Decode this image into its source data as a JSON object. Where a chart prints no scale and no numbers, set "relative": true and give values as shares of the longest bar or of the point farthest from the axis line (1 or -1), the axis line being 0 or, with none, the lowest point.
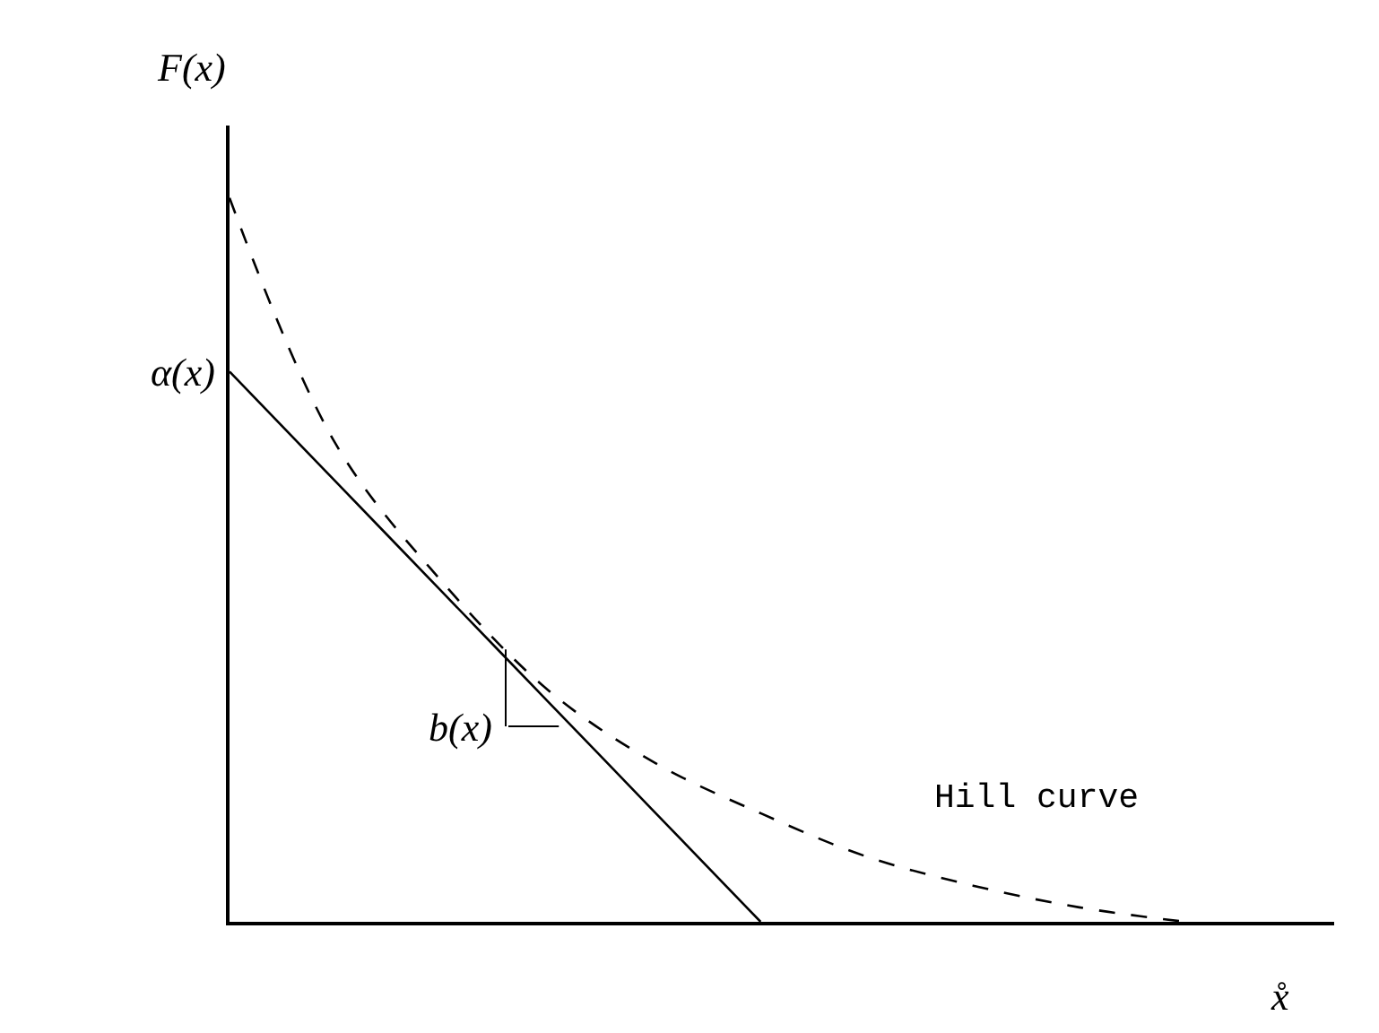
{
  "chart_data": {
    "type": "line",
    "relative": true,
    "ylabel": "F(x)",
    "xlabel": "x̊",
    "categories": [
      null,
      null,
      null,
      null,
      null,
      null,
      null,
      null,
      null,
      null
    ],
    "series": [
      {
        "color": "#000000",
        "line_style": "dashed",
        "values": [
          1.0,
          0.66,
          0.47,
          0.32,
          0.22,
          0.15,
          0.09,
          0.05,
          0.02,
          0.0
        ]
      },
      {
        "color": "#000000",
        "line_style": "solid",
        "values": [
          0.76,
          0.608,
          0.456,
          0.304,
          0.152,
          0.0,
          null,
          null,
          null,
          null
        ]
      }
    ],
    "annotations": [
      "α(x)",
      "b(x)",
      "Hill curve"
    ],
    "marker": "none"
  }
}
